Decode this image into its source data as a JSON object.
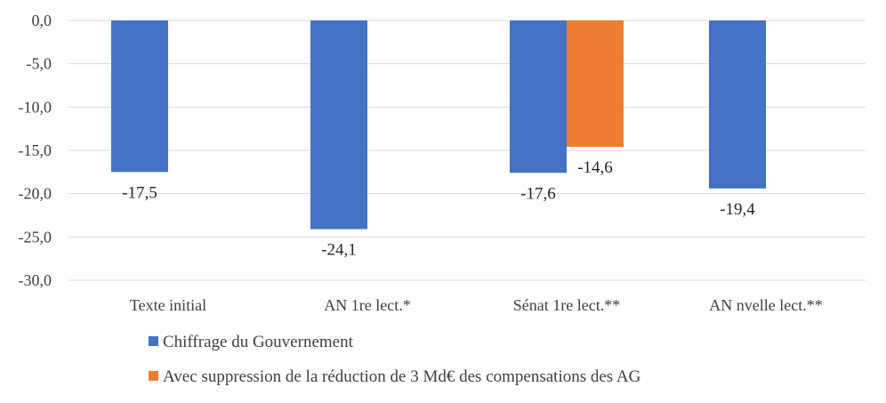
{
  "chart_data": {
    "type": "bar",
    "title": "",
    "xlabel": "",
    "ylabel": "",
    "ylim": [
      -30,
      0
    ],
    "yticks": [
      "0,0",
      "-5,0",
      "-10,0",
      "-15,0",
      "-20,0",
      "-25,0",
      "-30,0"
    ],
    "ytick_values": [
      0,
      -5,
      -10,
      -15,
      -20,
      -25,
      -30
    ],
    "grid": true,
    "legend_position": "bottom-left",
    "categories": [
      "Texte initial",
      "AN 1re lect.*",
      "Sénat 1re lect.**",
      "AN nvelle lect.**"
    ],
    "series": [
      {
        "name": "Chiffrage du Gouvernement",
        "color": "#4472C4",
        "values": [
          -17.5,
          -24.1,
          -17.6,
          -19.4
        ],
        "labels": [
          "-17,5",
          "-24,1",
          "-17,6",
          "-19,4"
        ]
      },
      {
        "name": "Avec suppression de la réduction de 3 Md€ des compensations des AG",
        "color": "#ED7D31",
        "values": [
          null,
          null,
          -14.6,
          null
        ],
        "labels": [
          null,
          null,
          "-14,6",
          null
        ]
      }
    ]
  }
}
